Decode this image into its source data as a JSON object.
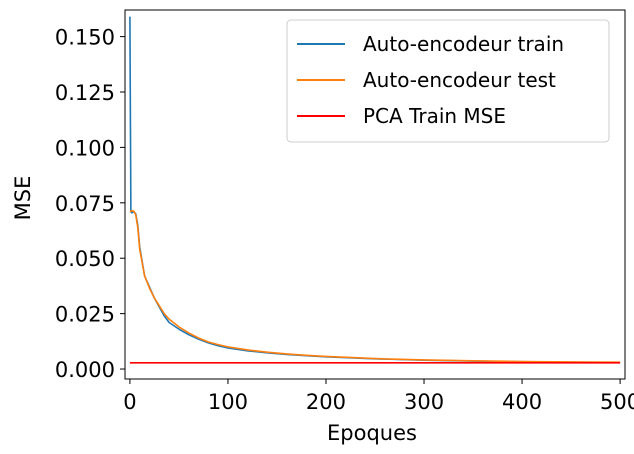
{
  "chart_data": {
    "type": "line",
    "xlabel": "Epoques",
    "ylabel": "MSE",
    "xlim": [
      -5,
      505
    ],
    "ylim": [
      -0.0045,
      0.162
    ],
    "xticks": [
      0,
      100,
      200,
      300,
      400,
      500
    ],
    "xtick_labels": [
      "0",
      "100",
      "200",
      "300",
      "400",
      "500"
    ],
    "yticks": [
      0.0,
      0.025,
      0.05,
      0.075,
      0.1,
      0.125,
      0.15
    ],
    "ytick_labels": [
      "0.000",
      "0.025",
      "0.050",
      "0.075",
      "0.100",
      "0.125",
      "0.150"
    ],
    "grid": false,
    "legend_position": "top-right",
    "series": [
      {
        "name": "Auto-encodeur train",
        "color": "#1f77b4",
        "x": [
          0,
          1,
          2,
          4,
          6,
          8,
          10,
          15,
          20,
          25,
          30,
          35,
          40,
          50,
          60,
          70,
          80,
          90,
          100,
          120,
          140,
          160,
          180,
          200,
          250,
          300,
          350,
          400,
          450,
          500
        ],
        "y": [
          0.159,
          0.071,
          0.0705,
          0.071,
          0.07,
          0.065,
          0.055,
          0.042,
          0.037,
          0.032,
          0.028,
          0.024,
          0.021,
          0.018,
          0.0155,
          0.0135,
          0.0118,
          0.0105,
          0.0095,
          0.0082,
          0.0073,
          0.0066,
          0.006,
          0.0055,
          0.0046,
          0.004,
          0.0036,
          0.0033,
          0.0031,
          0.003
        ]
      },
      {
        "name": "Auto-encodeur test",
        "color": "#ff7f0e",
        "x": [
          0,
          2,
          4,
          6,
          8,
          10,
          15,
          20,
          25,
          30,
          35,
          40,
          50,
          60,
          70,
          80,
          90,
          100,
          120,
          140,
          160,
          180,
          200,
          250,
          300,
          350,
          400,
          450,
          500
        ],
        "y": [
          0.071,
          0.0715,
          0.0712,
          0.0695,
          0.064,
          0.054,
          0.042,
          0.0365,
          0.032,
          0.0285,
          0.025,
          0.0225,
          0.019,
          0.0163,
          0.014,
          0.0122,
          0.011,
          0.01,
          0.0086,
          0.0076,
          0.0068,
          0.0062,
          0.0057,
          0.0047,
          0.0041,
          0.0037,
          0.0034,
          0.0032,
          0.0031
        ]
      },
      {
        "name": "PCA Train MSE",
        "color": "#ff0000",
        "x": [
          0,
          500
        ],
        "y": [
          0.0028,
          0.0028
        ]
      }
    ]
  }
}
